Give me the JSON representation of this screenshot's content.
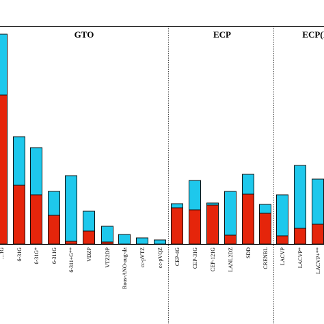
{
  "chart_data": {
    "type": "bar",
    "stacked": true,
    "title": "",
    "xlabel": "",
    "ylabel": "",
    "ylim": [
      0,
      310
    ],
    "grid": false,
    "colors": {
      "lower": "#e5250b",
      "upper": "#1ec8ec",
      "outline": "#111111"
    },
    "sections": [
      {
        "name": "GTO",
        "first": 0,
        "last": 9
      },
      {
        "name": "ECP",
        "first": 10,
        "last": 15
      },
      {
        "name": "ECP(I",
        "first": 16,
        "last": 18
      }
    ],
    "categories": [
      "…1G",
      "6-31G",
      "6-31G*",
      "6-311G",
      "6-311+G**",
      "VDZP",
      "VTZ2DP",
      "Roos-ANO-aug-dz",
      "cc-pVTZ",
      "cc-pVQZ",
      "CEP-4G",
      "CEP-31G",
      "CEP-121G",
      "LANL2DZ",
      "SDD",
      "CRENBL",
      "LACVP",
      "LACVP*",
      "LACVP+**"
    ],
    "series": [
      {
        "name": "",
        "values": [
          218,
          86,
          72,
          42,
          4,
          19,
          3,
          0,
          0,
          0,
          53,
          50,
          57,
          13,
          73,
          45,
          12,
          23,
          29
        ]
      },
      {
        "name": "",
        "values": [
          89,
          71,
          69,
          35,
          96,
          29,
          23,
          14,
          9,
          6,
          6,
          43,
          3,
          64,
          29,
          13,
          60,
          92,
          66
        ]
      }
    ]
  }
}
